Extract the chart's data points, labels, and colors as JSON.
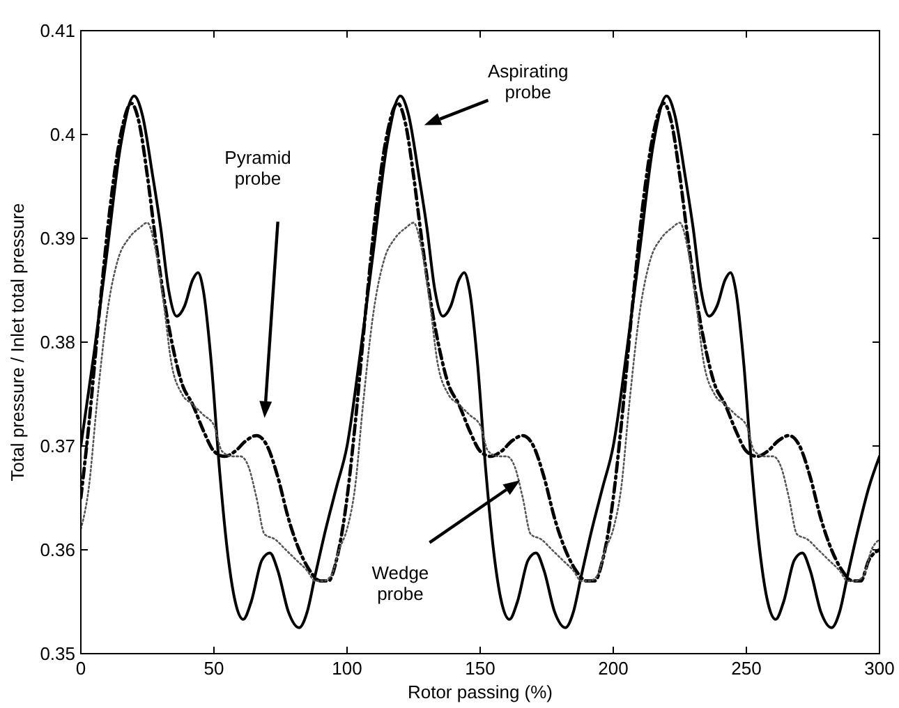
{
  "chart_data": {
    "type": "line",
    "xlabel": "Rotor passing (%)",
    "ylabel": "Total pressure / Inlet total pressure",
    "xlim": [
      0,
      300
    ],
    "ylim": [
      0.35,
      0.41
    ],
    "xticks": [
      0,
      50,
      100,
      150,
      200,
      250,
      300
    ],
    "yticks": [
      0.35,
      0.36,
      0.37,
      0.38,
      0.39,
      0.4,
      0.41
    ],
    "grid": false,
    "marker": "none",
    "annotations": [
      "Aspirating probe",
      "Pyramid probe",
      "Wedge probe"
    ],
    "series": [
      {
        "color": "#000000",
        "line_style": "solid",
        "x": [
          0,
          5,
          10,
          15,
          20,
          23,
          27,
          30,
          33,
          36,
          39,
          42,
          44,
          46,
          49,
          52,
          55,
          58,
          61,
          64,
          68,
          71,
          74,
          78,
          82,
          85,
          88,
          92,
          96,
          100,
          105,
          110,
          115,
          120,
          123,
          127,
          130,
          133,
          136,
          139,
          142,
          144,
          146,
          149,
          152,
          155,
          158,
          161,
          164,
          168,
          171,
          174,
          178,
          182,
          185,
          188,
          192,
          196,
          200,
          205,
          210,
          215,
          220,
          223,
          227,
          230,
          233,
          236,
          239,
          242,
          244,
          246,
          249,
          252,
          255,
          258,
          261,
          264,
          268,
          271,
          274,
          278,
          282,
          285,
          288,
          292,
          296,
          300
        ],
        "values": [
          0.37,
          0.379,
          0.389,
          0.399,
          0.4037,
          0.402,
          0.396,
          0.391,
          0.385,
          0.3825,
          0.3835,
          0.386,
          0.3867,
          0.385,
          0.378,
          0.368,
          0.36,
          0.355,
          0.3533,
          0.355,
          0.359,
          0.3597,
          0.358,
          0.354,
          0.3525,
          0.354,
          0.3575,
          0.362,
          0.366,
          0.37,
          0.379,
          0.389,
          0.399,
          0.4037,
          0.402,
          0.396,
          0.391,
          0.385,
          0.3825,
          0.3835,
          0.386,
          0.3867,
          0.385,
          0.378,
          0.368,
          0.36,
          0.355,
          0.3533,
          0.355,
          0.359,
          0.3597,
          0.358,
          0.354,
          0.3525,
          0.354,
          0.3575,
          0.362,
          0.366,
          0.37,
          0.379,
          0.389,
          0.399,
          0.4037,
          0.402,
          0.396,
          0.391,
          0.385,
          0.3825,
          0.3835,
          0.386,
          0.3867,
          0.385,
          0.378,
          0.368,
          0.36,
          0.355,
          0.3533,
          0.355,
          0.359,
          0.3597,
          0.358,
          0.354,
          0.3525,
          0.354,
          0.3575,
          0.362,
          0.366,
          0.369
        ]
      },
      {
        "color": "#000000",
        "line_style": "dashdot",
        "x": [
          0,
          3,
          7,
          11,
          15,
          19,
          22,
          25,
          28,
          32,
          35,
          38,
          42,
          46,
          50,
          54,
          58,
          62,
          66,
          70,
          74,
          78,
          82,
          86,
          90,
          93,
          96,
          100,
          103,
          107,
          111,
          115,
          119,
          122,
          125,
          128,
          132,
          135,
          138,
          142,
          146,
          150,
          154,
          158,
          162,
          166,
          170,
          174,
          178,
          182,
          186,
          190,
          193,
          196,
          200,
          203,
          207,
          211,
          215,
          219,
          222,
          225,
          228,
          232,
          235,
          238,
          242,
          246,
          250,
          254,
          258,
          262,
          266,
          270,
          274,
          278,
          282,
          286,
          290,
          293,
          296,
          300
        ],
        "values": [
          0.365,
          0.372,
          0.383,
          0.393,
          0.4,
          0.403,
          0.401,
          0.396,
          0.39,
          0.383,
          0.379,
          0.376,
          0.374,
          0.3715,
          0.3695,
          0.369,
          0.3695,
          0.3705,
          0.371,
          0.37,
          0.367,
          0.363,
          0.36,
          0.358,
          0.357,
          0.357,
          0.359,
          0.365,
          0.372,
          0.383,
          0.393,
          0.4,
          0.403,
          0.401,
          0.396,
          0.39,
          0.383,
          0.379,
          0.376,
          0.374,
          0.3715,
          0.3695,
          0.369,
          0.3695,
          0.3705,
          0.371,
          0.37,
          0.367,
          0.363,
          0.36,
          0.358,
          0.357,
          0.357,
          0.359,
          0.365,
          0.372,
          0.383,
          0.393,
          0.4,
          0.403,
          0.401,
          0.396,
          0.39,
          0.383,
          0.379,
          0.376,
          0.374,
          0.3715,
          0.3695,
          0.369,
          0.3695,
          0.3705,
          0.371,
          0.37,
          0.367,
          0.363,
          0.36,
          0.358,
          0.357,
          0.357,
          0.359,
          0.36
        ]
      },
      {
        "color": "#555555",
        "line_style": "dotted",
        "x": [
          0,
          3,
          6,
          10,
          14,
          18,
          22,
          25,
          28,
          31,
          34,
          38,
          42,
          46,
          50,
          53,
          57,
          60,
          63,
          66,
          69,
          73,
          77,
          81,
          85,
          88,
          91,
          94,
          97,
          100,
          103,
          106,
          110,
          114,
          118,
          122,
          125,
          128,
          131,
          134,
          138,
          142,
          146,
          150,
          153,
          157,
          160,
          163,
          166,
          169,
          173,
          177,
          181,
          185,
          188,
          191,
          194,
          197,
          200,
          203,
          206,
          210,
          214,
          218,
          222,
          225,
          228,
          231,
          234,
          238,
          242,
          246,
          250,
          253,
          257,
          260,
          263,
          266,
          269,
          273,
          277,
          281,
          285,
          288,
          291,
          294,
          297,
          300
        ],
        "values": [
          0.362,
          0.366,
          0.374,
          0.383,
          0.388,
          0.39,
          0.391,
          0.3915,
          0.389,
          0.384,
          0.378,
          0.375,
          0.374,
          0.373,
          0.372,
          0.3695,
          0.369,
          0.369,
          0.368,
          0.365,
          0.3615,
          0.361,
          0.36,
          0.359,
          0.358,
          0.357,
          0.357,
          0.3575,
          0.36,
          0.362,
          0.366,
          0.374,
          0.383,
          0.388,
          0.39,
          0.391,
          0.3915,
          0.389,
          0.384,
          0.378,
          0.375,
          0.374,
          0.373,
          0.372,
          0.3695,
          0.369,
          0.369,
          0.368,
          0.365,
          0.3615,
          0.361,
          0.36,
          0.359,
          0.358,
          0.357,
          0.357,
          0.3575,
          0.36,
          0.362,
          0.366,
          0.374,
          0.383,
          0.388,
          0.39,
          0.391,
          0.3915,
          0.389,
          0.384,
          0.378,
          0.375,
          0.374,
          0.373,
          0.372,
          0.3695,
          0.369,
          0.369,
          0.368,
          0.365,
          0.3615,
          0.361,
          0.36,
          0.359,
          0.358,
          0.357,
          0.357,
          0.3575,
          0.36,
          0.361
        ]
      }
    ]
  }
}
